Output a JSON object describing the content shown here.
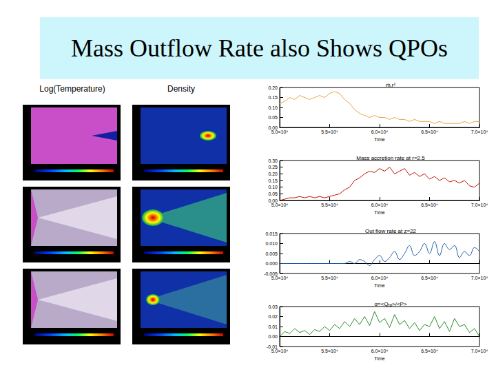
{
  "slide": {
    "title": "Mass Outflow Rate also Shows QPOs",
    "panel_labels": [
      "Log(Temperature)",
      "Density"
    ]
  },
  "chart_data": [
    {
      "type": "line",
      "title": "ṁ,r²",
      "x_label": "Time",
      "grid": false,
      "x": [
        50000,
        50500,
        51000,
        51500,
        52000,
        52500,
        53000,
        53500,
        54000,
        54500,
        55000,
        55500,
        56000,
        56500,
        57000,
        57500,
        58000,
        58500,
        59000,
        59500,
        60000,
        60500,
        61000,
        61500,
        62000,
        62500,
        63000,
        63500,
        64000,
        64500,
        65000,
        65500,
        66000,
        66500,
        67000,
        67500,
        68000,
        68500,
        69000,
        69500,
        70000
      ],
      "xlim": [
        50000,
        70000
      ],
      "xticks": [
        {
          "value": 50000,
          "label": "5.0×10⁴"
        },
        {
          "value": 55000,
          "label": "5.5×10⁴"
        },
        {
          "value": 60000,
          "label": "6.0×10⁴"
        },
        {
          "value": 65000,
          "label": "6.5×10⁴"
        },
        {
          "value": 70000,
          "label": "7.0×10⁴"
        }
      ],
      "ylim": [
        0,
        0.2
      ],
      "yticks": [
        {
          "value": 0,
          "label": "0.00"
        },
        0.05,
        {
          "value": 0.1,
          "label": "0.10"
        },
        0.15,
        {
          "value": 0.2,
          "label": "0.20"
        }
      ],
      "series": [
        {
          "color": "#e8a640",
          "values": [
            0.12,
            0.13,
            0.15,
            0.14,
            0.16,
            0.15,
            0.14,
            0.15,
            0.16,
            0.15,
            0.17,
            0.18,
            0.17,
            0.14,
            0.12,
            0.09,
            0.07,
            0.06,
            0.05,
            0.06,
            0.05,
            0.05,
            0.04,
            0.05,
            0.04,
            0.04,
            0.03,
            0.04,
            0.03,
            0.03,
            0.03,
            0.02,
            0.03,
            0.02,
            0.02,
            0.02,
            0.02,
            0.03,
            0.02,
            0.03,
            0.03
          ]
        }
      ]
    },
    {
      "type": "line",
      "title": "Mass accretion rate at r=2.5",
      "x_label": "Time",
      "grid": false,
      "x": [
        50000,
        50500,
        51000,
        51500,
        52000,
        52500,
        53000,
        53500,
        54000,
        54500,
        55000,
        55500,
        56000,
        56500,
        57000,
        57500,
        58000,
        58500,
        59000,
        59500,
        60000,
        60500,
        61000,
        61500,
        62000,
        62500,
        63000,
        63500,
        64000,
        64500,
        65000,
        65500,
        66000,
        66500,
        67000,
        67500,
        68000,
        68500,
        69000,
        69500,
        70000
      ],
      "xlim": [
        50000,
        70000
      ],
      "xticks": [
        {
          "value": 50000,
          "label": "5.0×10⁴"
        },
        {
          "value": 55000,
          "label": "5.5×10⁴"
        },
        {
          "value": 60000,
          "label": "6.0×10⁴"
        },
        {
          "value": 65000,
          "label": "6.5×10⁴"
        },
        {
          "value": 70000,
          "label": "7.0×10⁴"
        }
      ],
      "ylim": [
        0,
        0.3
      ],
      "yticks": [
        {
          "value": 0,
          "label": "0.00"
        },
        0.05,
        {
          "value": 0.1,
          "label": "0.10"
        },
        0.15,
        {
          "value": 0.2,
          "label": "0.20"
        },
        0.25,
        {
          "value": 0.3,
          "label": "0.30"
        }
      ],
      "series": [
        {
          "color": "#c0100a",
          "values": [
            0.0,
            0.01,
            0.02,
            0.02,
            0.03,
            0.02,
            0.03,
            0.02,
            0.03,
            0.02,
            0.03,
            0.04,
            0.05,
            0.08,
            0.1,
            0.15,
            0.17,
            0.2,
            0.22,
            0.21,
            0.24,
            0.22,
            0.25,
            0.2,
            0.22,
            0.24,
            0.19,
            0.21,
            0.18,
            0.2,
            0.16,
            0.18,
            0.15,
            0.17,
            0.14,
            0.15,
            0.13,
            0.15,
            0.11,
            0.1,
            0.13
          ]
        }
      ]
    },
    {
      "type": "line",
      "title": "Out flow rate at z=22",
      "x_label": "Time",
      "grid": false,
      "x": [
        50000,
        50500,
        51000,
        51500,
        52000,
        52500,
        53000,
        53500,
        54000,
        54500,
        55000,
        55500,
        56000,
        56500,
        57000,
        57500,
        58000,
        58500,
        59000,
        59500,
        60000,
        60500,
        61000,
        61500,
        62000,
        62500,
        63000,
        63500,
        64000,
        64500,
        65000,
        65500,
        66000,
        66500,
        67000,
        67500,
        68000,
        68500,
        69000,
        69500,
        70000
      ],
      "xlim": [
        50000,
        70000
      ],
      "xticks": [
        {
          "value": 50000,
          "label": "5.0×10⁴"
        },
        {
          "value": 55000,
          "label": "5.5×10⁴"
        },
        {
          "value": 60000,
          "label": "6.0×10⁴"
        },
        {
          "value": 65000,
          "label": "6.5×10⁴"
        },
        {
          "value": 70000,
          "label": "7.0×10⁴"
        }
      ],
      "ylim": [
        -0.005,
        0.015
      ],
      "yticks": [
        -0.005,
        {
          "value": 0,
          "label": "0.000"
        },
        0.005,
        {
          "value": 0.01,
          "label": "0.010"
        },
        0.015
      ],
      "series": [
        {
          "color": "#1f5fa8",
          "values": [
            0.0,
            0.0,
            0.0,
            0.0,
            0.0,
            0.0,
            0.0,
            0.0,
            0.0,
            0.0,
            0.0,
            0.0,
            0.0,
            0.0,
            0.001,
            0.0,
            0.002,
            0.001,
            -0.001,
            0.002,
            0.004,
            0.001,
            0.003,
            0.006,
            0.002,
            0.005,
            0.009,
            0.004,
            0.006,
            0.01,
            0.005,
            0.011,
            0.004,
            0.01,
            0.007,
            0.009,
            0.003,
            0.006,
            0.004,
            0.008,
            0.006
          ]
        }
      ]
    },
    {
      "type": "line",
      "title": "α=<Qᵣᵩ>/<P>",
      "x_label": "Time",
      "grid": false,
      "x": [
        50000,
        50500,
        51000,
        51500,
        52000,
        52500,
        53000,
        53500,
        54000,
        54500,
        55000,
        55500,
        56000,
        56500,
        57000,
        57500,
        58000,
        58500,
        59000,
        59500,
        60000,
        60500,
        61000,
        61500,
        62000,
        62500,
        63000,
        63500,
        64000,
        64500,
        65000,
        65500,
        66000,
        66500,
        67000,
        67500,
        68000,
        68500,
        69000,
        69500,
        70000
      ],
      "xlim": [
        50000,
        70000
      ],
      "xticks": [
        {
          "value": 50000,
          "label": "5.0×10⁴"
        },
        {
          "value": 55000,
          "label": "5.5×10⁴"
        },
        {
          "value": 60000,
          "label": "6.0×10⁴"
        },
        {
          "value": 65000,
          "label": "6.5×10⁴"
        },
        {
          "value": 70000,
          "label": "7.0×10⁴"
        }
      ],
      "ylim": [
        -0.01,
        0.03
      ],
      "yticks": [
        -0.01,
        {
          "value": 0,
          "label": "0.00"
        },
        0.01,
        0.02,
        0.03
      ],
      "series": [
        {
          "color": "#2a8a2a",
          "values": [
            0.0,
            0.005,
            0.003,
            0.008,
            0.004,
            0.006,
            0.002,
            0.007,
            0.005,
            0.01,
            0.006,
            0.012,
            0.008,
            0.015,
            0.01,
            0.018,
            0.012,
            0.02,
            0.011,
            0.025,
            0.014,
            0.018,
            0.009,
            0.022,
            0.012,
            0.016,
            0.008,
            0.014,
            0.006,
            0.012,
            0.01,
            0.02,
            0.008,
            0.015,
            0.005,
            0.018,
            0.01,
            0.012,
            0.004,
            0.008,
            0.0
          ]
        }
      ]
    }
  ]
}
